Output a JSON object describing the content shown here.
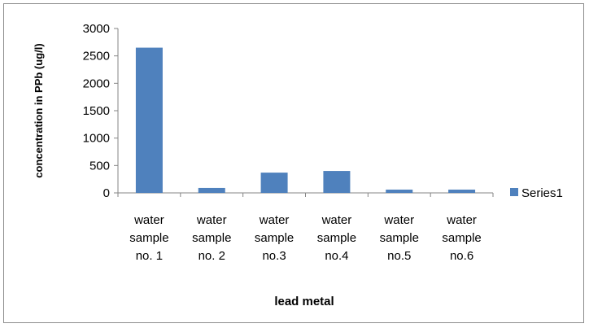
{
  "chart_data": {
    "type": "bar",
    "categories": [
      [
        "water",
        "sample",
        "no. 1"
      ],
      [
        "water",
        "sample",
        "no. 2"
      ],
      [
        "water",
        "sample",
        "no.3"
      ],
      [
        "water",
        "sample",
        "no.4"
      ],
      [
        "water",
        "sample",
        "no.5"
      ],
      [
        "water",
        "sample",
        "no.6"
      ]
    ],
    "series": [
      {
        "name": "Series1",
        "values": [
          2650,
          90,
          370,
          400,
          60,
          60
        ],
        "color": "#4f81bd"
      }
    ],
    "xlabel": "lead metal",
    "ylabel": "concentration in PPb  (ug/l)",
    "ylim": [
      0,
      3000
    ],
    "yticks": [
      0,
      500,
      1000,
      1500,
      2000,
      2500,
      3000
    ],
    "grid": false,
    "legend_position": "right"
  }
}
